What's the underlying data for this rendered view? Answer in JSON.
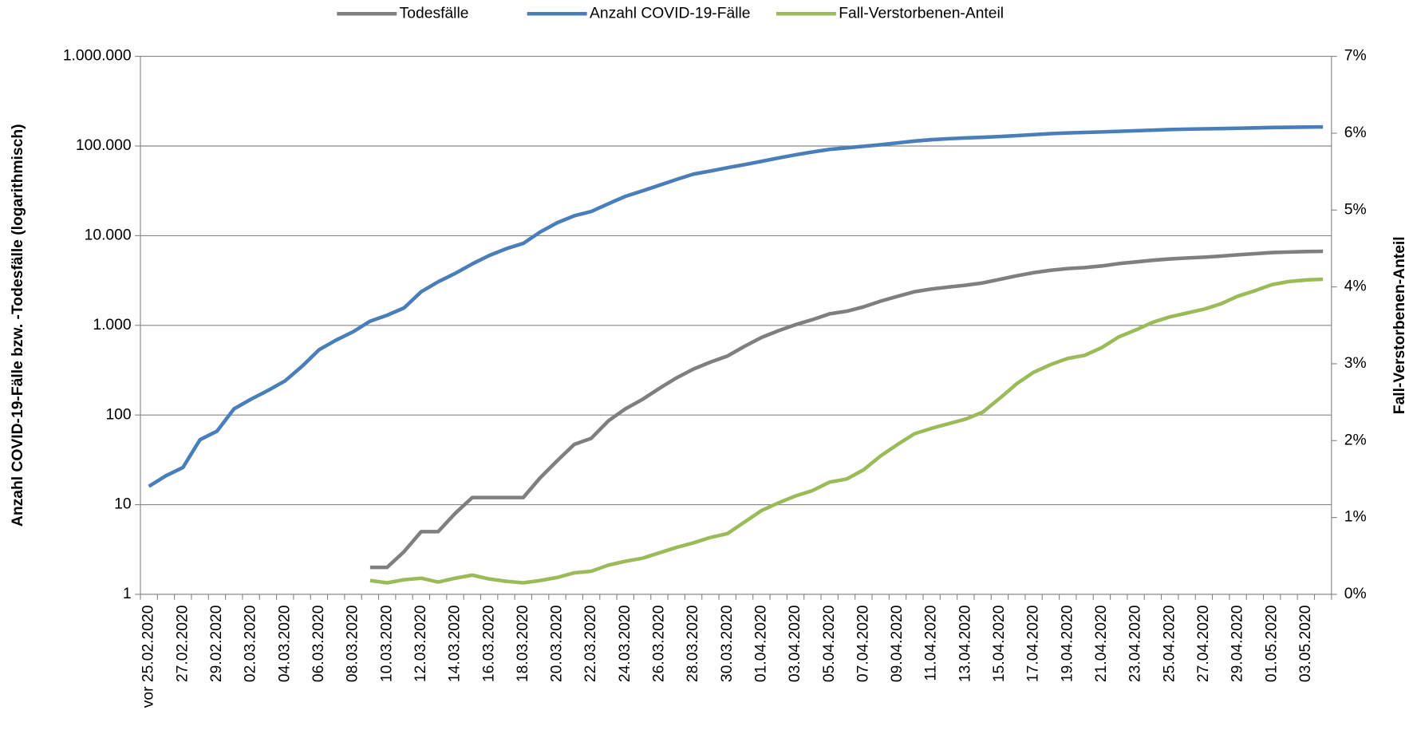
{
  "chart_data": {
    "type": "line",
    "y_label": "Anzahl COVID-19-Fälle bzw. -Todesfälle (logarithmisch)",
    "y2_label": "Fall-Verstorbenen-Anteil",
    "log_scale": true,
    "grid": true,
    "legend": "top",
    "categories": [
      "vor 25.02.2020",
      null,
      "27.02.2020",
      null,
      "29.02.2020",
      null,
      "02.03.2020",
      null,
      "04.03.2020",
      null,
      "06.03.2020",
      null,
      "08.03.2020",
      null,
      "10.03.2020",
      null,
      "12.03.2020",
      null,
      "14.03.2020",
      null,
      "16.03.2020",
      null,
      "18.03.2020",
      null,
      "20.03.2020",
      null,
      "22.03.2020",
      null,
      "24.03.2020",
      null,
      "26.03.2020",
      null,
      "28.03.2020",
      null,
      "30.03.2020",
      null,
      "01.04.2020",
      null,
      "03.04.2020",
      null,
      "05.04.2020",
      null,
      "07.04.2020",
      null,
      "09.04.2020",
      null,
      "11.04.2020",
      null,
      "13.04.2020",
      null,
      "15.04.2020",
      null,
      "17.04.2020",
      null,
      "19.04.2020",
      null,
      "21.04.2020",
      null,
      "23.04.2020",
      null,
      "25.04.2020",
      null,
      "27.04.2020",
      null,
      "29.04.2020",
      null,
      "01.05.2020",
      null,
      "03.05.2020",
      null
    ],
    "series": [
      {
        "name": "Todesfälle",
        "color": "#7f7f7f",
        "values": [
          null,
          null,
          null,
          null,
          null,
          null,
          null,
          null,
          null,
          null,
          null,
          null,
          null,
          2,
          2,
          3,
          5,
          5,
          8,
          12,
          12,
          12,
          12,
          20,
          31,
          47,
          55,
          86,
          117,
          149,
          198,
          259,
          325,
          389,
          455,
          583,
          732,
          872,
          1017,
          1158,
          1342,
          1434,
          1607,
          1861,
          2107,
          2373,
          2544,
          2673,
          2799,
          2969,
          3254,
          3569,
          3868,
          4110,
          4294,
          4404,
          4598,
          4879,
          5094,
          5321,
          5500,
          5640,
          5750,
          5913,
          6115,
          6288,
          6481,
          6575,
          6649,
          6692
        ]
      },
      {
        "name": "Anzahl COVID-19-Fälle",
        "color": "#4a7ebb",
        "values": [
          16,
          21,
          26,
          53,
          66,
          117,
          150,
          188,
          240,
          349,
          534,
          684,
          847,
          1112,
          1296,
          1567,
          2369,
          3062,
          3795,
          4838,
          6012,
          7156,
          8198,
          10999,
          13957,
          16662,
          18610,
          22672,
          27436,
          31554,
          36508,
          42288,
          48582,
          52547,
          57298,
          61913,
          67366,
          73522,
          79696,
          85778,
          91714,
          95391,
          99225,
          103228,
          108202,
          113525,
          117658,
          120479,
          123016,
          125098,
          127584,
          130450,
          133830,
          137439,
          139897,
          141672,
          143457,
          145694,
          148046,
          150383,
          152438,
          154175,
          155193,
          156337,
          157641,
          159119,
          160758,
          161703,
          162496,
          163175
        ]
      },
      {
        "name": "Fall-Verstorbenen-Anteil",
        "color": "#9bbb59",
        "axis": "y2",
        "values": [
          null,
          null,
          null,
          null,
          null,
          null,
          null,
          null,
          null,
          null,
          null,
          null,
          null,
          0.18,
          0.15,
          0.19,
          0.21,
          0.16,
          0.21,
          0.25,
          0.2,
          0.17,
          0.15,
          0.18,
          0.22,
          0.28,
          0.3,
          0.38,
          0.43,
          0.47,
          0.54,
          0.61,
          0.67,
          0.74,
          0.79,
          0.94,
          1.09,
          1.19,
          1.28,
          1.35,
          1.46,
          1.5,
          1.62,
          1.8,
          1.95,
          2.09,
          2.16,
          2.22,
          2.28,
          2.37,
          2.55,
          2.74,
          2.89,
          2.99,
          3.07,
          3.11,
          3.21,
          3.35,
          3.44,
          3.54,
          3.61,
          3.66,
          3.71,
          3.78,
          3.88,
          3.95,
          4.03,
          4.07,
          4.09,
          4.1
        ]
      }
    ],
    "ylim": [
      1,
      1000000
    ],
    "yticks": [
      1,
      10,
      100,
      {
        "value": 1000,
        "label": "1.000"
      },
      {
        "value": 10000,
        "label": "10.000"
      },
      {
        "value": 100000,
        "label": "100.000"
      },
      {
        "value": 1000000,
        "label": "1.000.000"
      }
    ],
    "y2lim": [
      0,
      7
    ],
    "y2ticks": [
      {
        "value": 0,
        "label": "0%"
      },
      {
        "value": 1,
        "label": "1%"
      },
      {
        "value": 2,
        "label": "2%"
      },
      {
        "value": 3,
        "label": "3%"
      },
      {
        "value": 4,
        "label": "4%"
      },
      {
        "value": 5,
        "label": "5%"
      },
      {
        "value": 6,
        "label": "6%"
      },
      {
        "value": 7,
        "label": "7%"
      }
    ]
  }
}
